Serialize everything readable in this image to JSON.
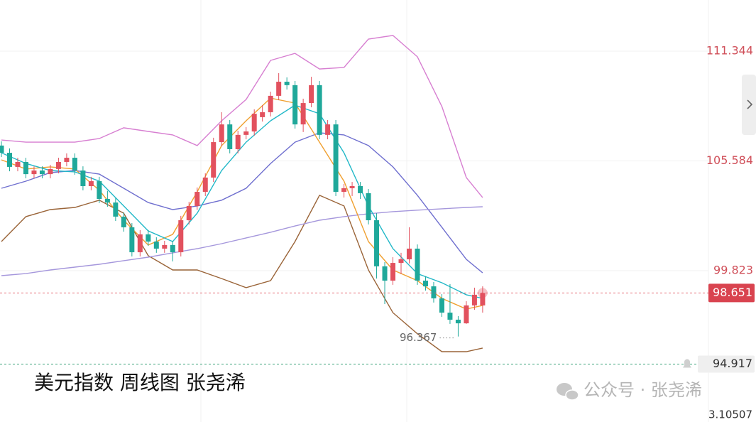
{
  "chart_data": {
    "type": "candlestick",
    "title": "美元指数 周线图 张尧浠",
    "watermark": "公众号 · 张尧浠",
    "footer": "3.10507",
    "ylim": [
      91.88,
      114.03
    ],
    "yticks": [
      111.344,
      105.584,
      99.823
    ],
    "grid": true,
    "up_color": "#e2515e",
    "down_color": "#1fa89a",
    "last_price": 98.651,
    "alert_price": 94.917,
    "low_annotation": 96.367,
    "open": [
      106.39,
      106.01,
      105.27,
      105.53,
      104.89,
      105.08,
      104.89,
      105.16,
      105.53,
      105.75,
      105.08,
      104.26,
      104.52,
      103.59,
      103.4,
      102.66,
      102.1,
      100.79,
      101.73,
      101.35,
      100.98,
      101.17,
      100.79,
      102.47,
      103.22,
      103.96,
      104.71,
      106.57,
      107.5,
      106.2,
      106.95,
      107.13,
      107.88,
      108.14,
      109.0,
      109.74,
      109.56,
      107.5,
      108.62,
      109.56,
      106.95,
      107.5,
      103.96,
      104.15,
      104.26,
      103.89,
      102.47,
      100.05,
      99.3,
      100.23,
      100.42,
      100.98,
      99.3,
      99.0,
      98.37,
      97.62,
      97.25,
      97.06,
      98.0,
      98.0
    ],
    "high": [
      106.61,
      106.24,
      105.75,
      105.75,
      105.3,
      105.3,
      105.38,
      105.75,
      105.98,
      105.98,
      105.3,
      104.75,
      104.75,
      104.01,
      103.63,
      102.88,
      102.32,
      101.95,
      101.95,
      101.58,
      101.39,
      101.39,
      102.7,
      103.44,
      104.19,
      104.93,
      106.8,
      108.14,
      107.73,
      107.17,
      107.36,
      108.29,
      108.51,
      109.22,
      110.19,
      109.97,
      109.78,
      108.85,
      110.0,
      109.78,
      107.73,
      107.73,
      104.37,
      104.48,
      104.48,
      104.11,
      102.84,
      100.27,
      100.53,
      100.76,
      102.1,
      101.2,
      99.53,
      99.23,
      98.59,
      99.12,
      97.44,
      98.22,
      98.93,
      99.0
    ],
    "low": [
      105.79,
      105.04,
      105.04,
      104.67,
      104.67,
      104.67,
      104.67,
      104.93,
      105.3,
      104.86,
      104.04,
      104.04,
      103.37,
      103.18,
      102.43,
      101.87,
      100.57,
      100.57,
      101.13,
      100.76,
      100.76,
      100.31,
      100.57,
      102.25,
      103.01,
      103.74,
      104.48,
      106.35,
      105.98,
      105.98,
      106.72,
      106.91,
      107.65,
      107.92,
      108.77,
      109.33,
      107.28,
      107.1,
      108.4,
      106.72,
      106.72,
      103.74,
      103.66,
      103.74,
      103.59,
      102.25,
      99.41,
      98.07,
      99.08,
      99.64,
      100.2,
      99.08,
      98.78,
      98.15,
      97.4,
      97.03,
      96.367,
      97.03,
      97.77,
      97.62
    ],
    "close": [
      106.01,
      105.27,
      105.53,
      104.89,
      105.08,
      104.89,
      105.16,
      105.53,
      105.75,
      105.08,
      104.26,
      104.52,
      103.59,
      103.4,
      102.66,
      102.1,
      100.79,
      101.73,
      101.35,
      100.98,
      101.17,
      100.79,
      102.47,
      103.22,
      103.96,
      104.71,
      106.57,
      107.5,
      106.2,
      106.95,
      107.13,
      108.06,
      108.14,
      109.0,
      109.74,
      109.56,
      107.5,
      108.62,
      109.56,
      106.95,
      107.5,
      103.96,
      104.15,
      104.26,
      103.89,
      102.47,
      100.05,
      99.3,
      100.23,
      100.42,
      100.98,
      99.3,
      99.0,
      98.37,
      97.62,
      97.25,
      97.06,
      98.0,
      98.56,
      98.651
    ],
    "lines": [
      {
        "color": "#d77fd1",
        "x": [
          0,
          3,
          6,
          9,
          12,
          15,
          18,
          21,
          24,
          27,
          30,
          33,
          36,
          39,
          42,
          45,
          48,
          51,
          54,
          57,
          59
        ],
        "values": [
          106.68,
          106.57,
          106.57,
          106.57,
          106.76,
          107.32,
          107.13,
          106.95,
          106.39,
          107.69,
          108.81,
          110.86,
          111.23,
          110.41,
          110.49,
          111.98,
          112.17,
          111.05,
          108.44,
          104.71,
          103.66
        ]
      },
      {
        "color": "#9a6438",
        "x": [
          0,
          3,
          6,
          9,
          12,
          15,
          18,
          21,
          24,
          27,
          30,
          33,
          36,
          39,
          42,
          45,
          48,
          51,
          54,
          57,
          59
        ],
        "values": [
          101.35,
          102.66,
          103.03,
          103.14,
          103.52,
          102.84,
          100.61,
          99.86,
          99.86,
          99.41,
          98.93,
          99.3,
          101.35,
          103.78,
          103.22,
          99.86,
          97.62,
          96.51,
          95.57,
          95.57,
          95.76
        ]
      },
      {
        "color": "#6f6fcf",
        "x": [
          0,
          3,
          6,
          9,
          12,
          15,
          18,
          21,
          24,
          27,
          30,
          33,
          36,
          39,
          42,
          45,
          48,
          51,
          54,
          57,
          59
        ],
        "values": [
          104.15,
          104.52,
          104.97,
          105.08,
          104.89,
          104.15,
          103.4,
          103.03,
          103.22,
          103.52,
          104.15,
          105.45,
          106.57,
          107.06,
          106.95,
          106.39,
          105.27,
          103.78,
          102.1,
          100.42,
          99.71
        ]
      },
      {
        "color": "#a597dc",
        "x": [
          0,
          3,
          6,
          9,
          12,
          15,
          18,
          21,
          24,
          27,
          30,
          33,
          36,
          39,
          42,
          45,
          48,
          51,
          54,
          57,
          59
        ],
        "values": [
          99.56,
          99.67,
          99.86,
          100.01,
          100.16,
          100.35,
          100.53,
          100.76,
          100.98,
          101.24,
          101.54,
          101.84,
          102.17,
          102.47,
          102.66,
          102.81,
          102.92,
          103.0,
          103.07,
          103.14,
          103.18
        ]
      },
      {
        "color": "#f0a030",
        "x": [
          0,
          3,
          6,
          9,
          12,
          15,
          18,
          21,
          24,
          27,
          30,
          33,
          36,
          39,
          42,
          45,
          48,
          51,
          54,
          57,
          59
        ],
        "values": [
          105.64,
          105.16,
          105.27,
          105.16,
          104.04,
          102.47,
          101.17,
          101.73,
          103.96,
          106.39,
          107.69,
          108.88,
          108.62,
          106.57,
          104.52,
          101.35,
          99.86,
          99.3,
          98.37,
          97.81,
          98.0
        ]
      },
      {
        "color": "#22b8c8",
        "x": [
          0,
          3,
          6,
          9,
          12,
          15,
          18,
          21,
          24,
          27,
          30,
          33,
          36,
          39,
          42,
          45,
          48,
          51,
          54,
          57,
          59
        ],
        "values": [
          106.01,
          105.45,
          105.08,
          105.01,
          104.52,
          103.22,
          101.91,
          101.35,
          102.84,
          105.08,
          106.57,
          107.69,
          108.51,
          108.06,
          106.01,
          103.22,
          100.98,
          99.67,
          99.19,
          98.56,
          98.37
        ]
      }
    ]
  }
}
